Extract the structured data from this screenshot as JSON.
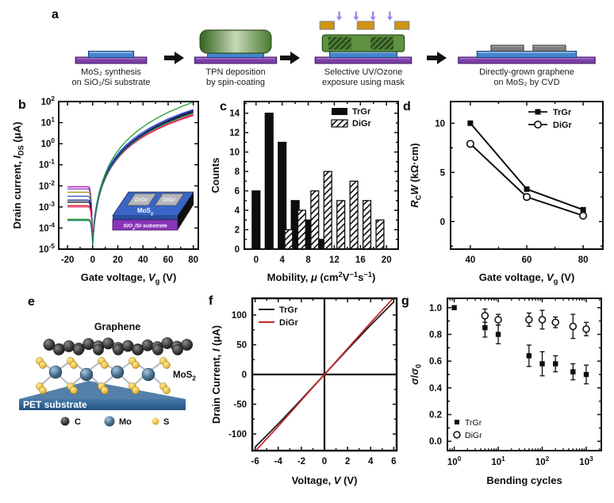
{
  "panels": {
    "a": "a",
    "b": "b",
    "c": "c",
    "d": "d",
    "e": "e",
    "f": "f",
    "g": "g"
  },
  "panel_a": {
    "steps": [
      {
        "line1": "MoS₂ synthesis",
        "line2": "on SiO₂/Si substrate"
      },
      {
        "line1": "TPN deposition",
        "line2": "by spin-coating"
      },
      {
        "line1": "Selective UV/Ozone",
        "line2": "exposure using mask"
      },
      {
        "line1": "Directly-grown graphene",
        "line2": "on MoS₂ by CVD"
      }
    ],
    "colors": {
      "substrate": "#7b3fa6",
      "mos2_layer": "#4585cc",
      "tpn_film": "#5e9140",
      "mask": "#d0950f",
      "uv_arrow": "#9b85e8",
      "graphene_strip": "#7d7d7d"
    }
  },
  "panel_b_inset": {
    "pad1": "DiGr",
    "pad2": "DiGr",
    "layer": "MoS₂",
    "substrate": "SiO₂/Si substrate"
  },
  "panel_e": {
    "labels": {
      "graphene": "Graphene",
      "mos2": "MoS₂",
      "substrate": "PET substrate"
    },
    "legend": [
      {
        "label": "C",
        "color": "#222222"
      },
      {
        "label": "Mo",
        "color": "#49708f"
      },
      {
        "label": "S",
        "color": "#eec148"
      }
    ]
  },
  "chart_data": [
    {
      "id": "b",
      "type": "line",
      "y_scale": "log",
      "xlabel_parts": [
        [
          "Gate voltage, "
        ],
        [
          "V",
          "i"
        ],
        [
          "g",
          "sub"
        ],
        [
          " (V)"
        ]
      ],
      "ylabel_parts": [
        [
          "Drain current, "
        ],
        [
          "I",
          "i"
        ],
        [
          "DS",
          "sub"
        ],
        [
          " (μA)"
        ]
      ],
      "xlim": [
        -27,
        84
      ],
      "ylim_exp": [
        -5,
        2
      ],
      "xticks": [
        -20,
        0,
        20,
        40,
        60,
        80
      ],
      "x_minor": [
        -10,
        10,
        30,
        50,
        70
      ],
      "series": [
        {
          "color": "#b400b4",
          "off": 0.009,
          "min": 1.6e-05,
          "on": 30
        },
        {
          "color": "#7a2fc0",
          "off": 0.0072,
          "min": 2e-05,
          "on": 36
        },
        {
          "color": "#a8a022",
          "off": 0.005,
          "min": 1.8e-05,
          "on": 27
        },
        {
          "color": "#2f52d9",
          "off": 0.0032,
          "min": 2.4e-05,
          "on": 42
        },
        {
          "color": "#1c2a8e",
          "off": 0.0021,
          "min": 1.5e-05,
          "on": 38
        },
        {
          "color": "#151515",
          "off": 0.0017,
          "min": 1.4e-05,
          "on": 33
        },
        {
          "color": "#d42222",
          "off": 0.00115,
          "min": 2.2e-05,
          "on": 22
        },
        {
          "color": "#e8317f",
          "off": 0.001,
          "min": 1.7e-05,
          "on": 24
        },
        {
          "color": "#1f9e34",
          "off": 0.00026,
          "min": 1.3e-05,
          "on": 95
        },
        {
          "color": "#157a6a",
          "off": 0.00023,
          "min": 1.6e-05,
          "on": 29
        }
      ]
    },
    {
      "id": "c",
      "type": "bar",
      "xlabel_parts": [
        [
          "Mobility, "
        ],
        [
          "μ",
          "i"
        ],
        [
          " (cm"
        ],
        [
          "2",
          "sup"
        ],
        [
          "V"
        ],
        [
          "−1",
          "sup"
        ],
        [
          "s"
        ],
        [
          "−1",
          "sup"
        ],
        [
          ")"
        ]
      ],
      "ylabel_parts": [
        [
          "Counts"
        ]
      ],
      "xlim": [
        -1.8,
        21.8
      ],
      "ylim": [
        0,
        15.2
      ],
      "xticks": [
        0,
        4,
        8,
        12,
        16,
        20
      ],
      "x_minor": [
        2,
        6,
        10,
        14,
        18
      ],
      "yticks": [
        0,
        2,
        4,
        6,
        8,
        10,
        12,
        14
      ],
      "y_minor": [
        1,
        3,
        5,
        7,
        9,
        11,
        13,
        15
      ],
      "bar_width": 1.2,
      "series": [
        {
          "name": "TrGr",
          "style": "solid",
          "centers": [
            0,
            2,
            4,
            6,
            8,
            10
          ],
          "counts": [
            6,
            14,
            11,
            5,
            3,
            1
          ]
        },
        {
          "name": "DiGr",
          "style": "hatched",
          "centers": [
            5,
            7,
            9,
            11,
            13,
            15,
            17,
            19
          ],
          "counts": [
            2,
            4,
            6,
            8,
            5,
            7,
            5,
            3
          ]
        }
      ]
    },
    {
      "id": "d",
      "type": "line-marker",
      "xlabel_parts": [
        [
          "Gate voltage, "
        ],
        [
          "V",
          "i"
        ],
        [
          "g",
          "sub"
        ],
        [
          " (V)"
        ]
      ],
      "ylabel_parts": [
        [
          "R",
          "i"
        ],
        [
          "C",
          "sub"
        ],
        [
          "W",
          "i"
        ],
        [
          " (kΩ·cm)"
        ]
      ],
      "xlim": [
        33,
        87
      ],
      "ylim": [
        -2.8,
        12.2
      ],
      "xticks": [
        40,
        60,
        80
      ],
      "x_minor": [
        50,
        70
      ],
      "yticks": [
        0,
        5,
        10
      ],
      "y_minor": [
        -2.5,
        2.5,
        7.5
      ],
      "series": [
        {
          "name": "TrGr",
          "marker": "square",
          "x": [
            40,
            60,
            80
          ],
          "y": [
            10.0,
            3.3,
            1.2
          ]
        },
        {
          "name": "DiGr",
          "marker": "circle",
          "x": [
            40,
            60,
            80
          ],
          "y": [
            7.9,
            2.5,
            0.6
          ]
        }
      ]
    },
    {
      "id": "f",
      "type": "line",
      "xlabel_parts": [
        [
          "Voltage, "
        ],
        [
          "V",
          "i"
        ],
        [
          " (V)"
        ]
      ],
      "ylabel_parts": [
        [
          "Drain Current, "
        ],
        [
          "I",
          "i"
        ],
        [
          " (μA)"
        ]
      ],
      "xlim": [
        -6.25,
        6.25
      ],
      "ylim": [
        -128,
        128
      ],
      "xticks": [
        -6,
        -4,
        -2,
        0,
        2,
        4,
        6
      ],
      "x_minor": [
        -5,
        -3,
        -1,
        1,
        3,
        5
      ],
      "yticks": [
        -100,
        -50,
        0,
        50,
        100
      ],
      "y_minor": [
        -75,
        -25,
        25,
        75
      ],
      "zero_lines": true,
      "series": [
        {
          "name": "TrGr",
          "color": "#1a1a1a",
          "points": [
            [
              -6,
              -122
            ],
            [
              -4,
              -83
            ],
            [
              -2,
              -42
            ],
            [
              0,
              0
            ],
            [
              2,
              42
            ],
            [
              4,
              83
            ],
            [
              6,
              122
            ]
          ]
        },
        {
          "name": "DiGr",
          "color": "#c42727",
          "points": [
            [
              -6,
              -129
            ],
            [
              -4,
              -87
            ],
            [
              -2,
              -43.5
            ],
            [
              0,
              0
            ],
            [
              2,
              43.5
            ],
            [
              4,
              87
            ],
            [
              6,
              129
            ]
          ]
        }
      ]
    },
    {
      "id": "g",
      "type": "scatter-error",
      "x_scale": "log",
      "xlabel_parts": [
        [
          "Bending cycles"
        ]
      ],
      "ylabel_parts": [
        [
          "σ",
          "i"
        ],
        [
          "/"
        ],
        [
          "σ",
          "i"
        ],
        [
          "0",
          "sub"
        ]
      ],
      "xlim": [
        0.7,
        2200
      ],
      "ylim": [
        -0.07,
        1.07
      ],
      "xticks_exp": [
        0,
        1,
        2,
        3
      ],
      "yticks": [
        0.0,
        0.2,
        0.4,
        0.6,
        0.8,
        1.0
      ],
      "y_minor": [
        0.1,
        0.3,
        0.5,
        0.7,
        0.9
      ],
      "series": [
        {
          "name": "TrGr",
          "marker": "square",
          "x": [
            1,
            5,
            10,
            50,
            100,
            200,
            500,
            1000
          ],
          "y": [
            1.0,
            0.85,
            0.8,
            0.64,
            0.58,
            0.58,
            0.52,
            0.5
          ],
          "yerr": [
            0,
            0.07,
            0.07,
            0.08,
            0.09,
            0.06,
            0.06,
            0.07
          ]
        },
        {
          "name": "DiGr",
          "marker": "circle",
          "x": [
            5,
            10,
            50,
            100,
            200,
            500,
            1000
          ],
          "y": [
            0.94,
            0.91,
            0.91,
            0.91,
            0.89,
            0.86,
            0.84
          ],
          "yerr": [
            0.05,
            0.04,
            0.05,
            0.07,
            0.04,
            0.09,
            0.05
          ]
        }
      ]
    }
  ]
}
